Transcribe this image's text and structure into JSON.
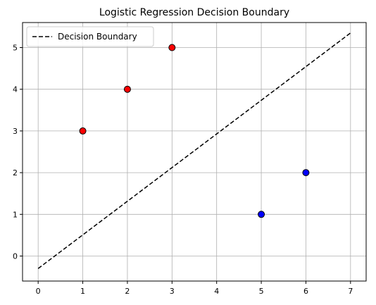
{
  "chart_data": {
    "type": "scatter",
    "title": "Logistic Regression Decision Boundary",
    "xlabel": "",
    "ylabel": "",
    "xlim": [
      -0.35,
      7.35
    ],
    "ylim": [
      -0.6,
      5.6
    ],
    "xticks": [
      0,
      1,
      2,
      3,
      4,
      5,
      6,
      7
    ],
    "yticks": [
      0,
      1,
      2,
      3,
      4,
      5
    ],
    "grid": true,
    "legend_position": "top-left",
    "series": [
      {
        "type": "scatter",
        "color": "#ff0000",
        "edgecolor": "#000000",
        "points": [
          [
            1,
            3
          ],
          [
            2,
            4
          ],
          [
            3,
            5
          ]
        ]
      },
      {
        "type": "scatter",
        "color": "#0000ff",
        "edgecolor": "#000000",
        "points": [
          [
            5,
            1
          ],
          [
            6,
            2
          ]
        ]
      },
      {
        "type": "line",
        "name": "Decision Boundary",
        "style": "dashed",
        "color": "#000000",
        "points": [
          [
            0,
            -0.3
          ],
          [
            7,
            5.35
          ]
        ]
      }
    ]
  }
}
